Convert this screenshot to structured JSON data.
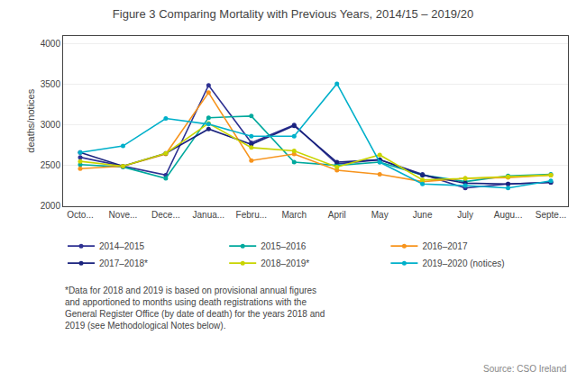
{
  "chart_data": {
    "type": "line",
    "title": "Figure 3 Comparing Mortality with Previous Years, 2014/15 – 2019/20",
    "y_label": "deaths/notices",
    "categories": [
      "Octo...",
      "Nove...",
      "Dece...",
      "Janua...",
      "Febru...",
      "March",
      "April",
      "May",
      "June",
      "July",
      "Augu...",
      "Septe..."
    ],
    "series": [
      {
        "name": "2014–2015",
        "color": "#2e3192",
        "values": [
          2600,
          2490,
          2380,
          3490,
          2780,
          3000,
          2520,
          2570,
          2390,
          2220,
          2270,
          2290
        ]
      },
      {
        "name": "2015–2016",
        "color": "#00a99d",
        "values": [
          2510,
          2480,
          2340,
          3090,
          3110,
          2540,
          2500,
          2540,
          2380,
          2300,
          2370,
          2390
        ]
      },
      {
        "name": "2016–2017",
        "color": "#f7941d",
        "values": [
          2460,
          2490,
          2640,
          3400,
          2560,
          2640,
          2440,
          2390,
          2300,
          2340,
          2350,
          2380
        ]
      },
      {
        "name": "2017–2018*",
        "color": "#1a237e",
        "values": [
          2660,
          2490,
          2650,
          2950,
          2760,
          2990,
          2540,
          2570,
          2380,
          2280,
          2270,
          2290
        ]
      },
      {
        "name": "2018–2019*",
        "color": "#c8d400",
        "values": [
          2550,
          2490,
          2650,
          3020,
          2720,
          2680,
          2480,
          2630,
          2320,
          2340,
          2360,
          2380
        ]
      },
      {
        "name": "2019–2020 (notices)",
        "color": "#00b0ca",
        "values": [
          2660,
          2740,
          3080,
          3010,
          2860,
          2860,
          3510,
          2540,
          2270,
          2250,
          2220,
          2310
        ]
      }
    ],
    "ylim": [
      2000,
      4100
    ],
    "yticks": [
      2000,
      2500,
      3000,
      3500,
      4000
    ],
    "grid": true,
    "marker": "circle",
    "legend": "lower left",
    "annotations": [
      "*Data for 2018 and 2019 is based on provisional annual figures\nand apportioned to months using death registrations with the\nGeneral Register Office (by date of death) for the years 2018 and\n2019 (see Methodological Notes below).",
      "Source: CSO Ireland"
    ]
  }
}
